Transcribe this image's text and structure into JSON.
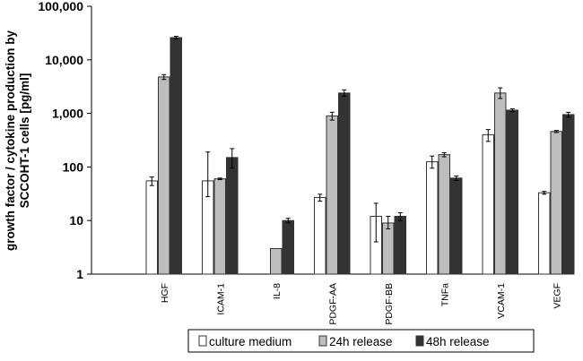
{
  "chart_data": {
    "type": "bar",
    "ylabel_lines": [
      "growth factor / cytokine production by",
      "SCCOHT-1 cells [pg/ml]"
    ],
    "yscale": "log",
    "ylim": [
      1,
      100000
    ],
    "yticks": [
      "1",
      "10",
      "100",
      "1,000",
      "10,000",
      "100,000"
    ],
    "grid": false,
    "legend_position": "bottom",
    "categories": [
      "HGF",
      "ICAM-1",
      "IL-8",
      "PDGF-AA",
      "PDGF-BB",
      "TNFa",
      "VCAM-1",
      "VEGF"
    ],
    "series": [
      {
        "name": "culture medium",
        "color": "#ffffff",
        "values": [
          55,
          55,
          null,
          27,
          12,
          125,
          400,
          33
        ],
        "error": [
          [
            45,
            65
          ],
          [
            28,
            190
          ],
          [
            null,
            null
          ],
          [
            23,
            31
          ],
          [
            4,
            21
          ],
          [
            95,
            160
          ],
          [
            300,
            500
          ],
          [
            31,
            35
          ]
        ]
      },
      {
        "name": "24h release",
        "color": "#bdbdbd",
        "values": [
          4800,
          60,
          3,
          900,
          9,
          170,
          2400,
          460
        ],
        "error": [
          [
            4300,
            5300
          ],
          [
            58,
            62
          ],
          [
            null,
            null
          ],
          [
            750,
            1050
          ],
          [
            7,
            12
          ],
          [
            155,
            185
          ],
          [
            1900,
            3000
          ],
          [
            440,
            480
          ]
        ]
      },
      {
        "name": "48h release",
        "color": "#333333",
        "values": [
          26000,
          150,
          10,
          2400,
          12,
          62,
          1150,
          950
        ],
        "error": [
          [
            24500,
            27500
          ],
          [
            95,
            220
          ],
          [
            9,
            11
          ],
          [
            2100,
            2750
          ],
          [
            10,
            14
          ],
          [
            56,
            68
          ],
          [
            1080,
            1220
          ],
          [
            850,
            1050
          ]
        ]
      }
    ]
  }
}
